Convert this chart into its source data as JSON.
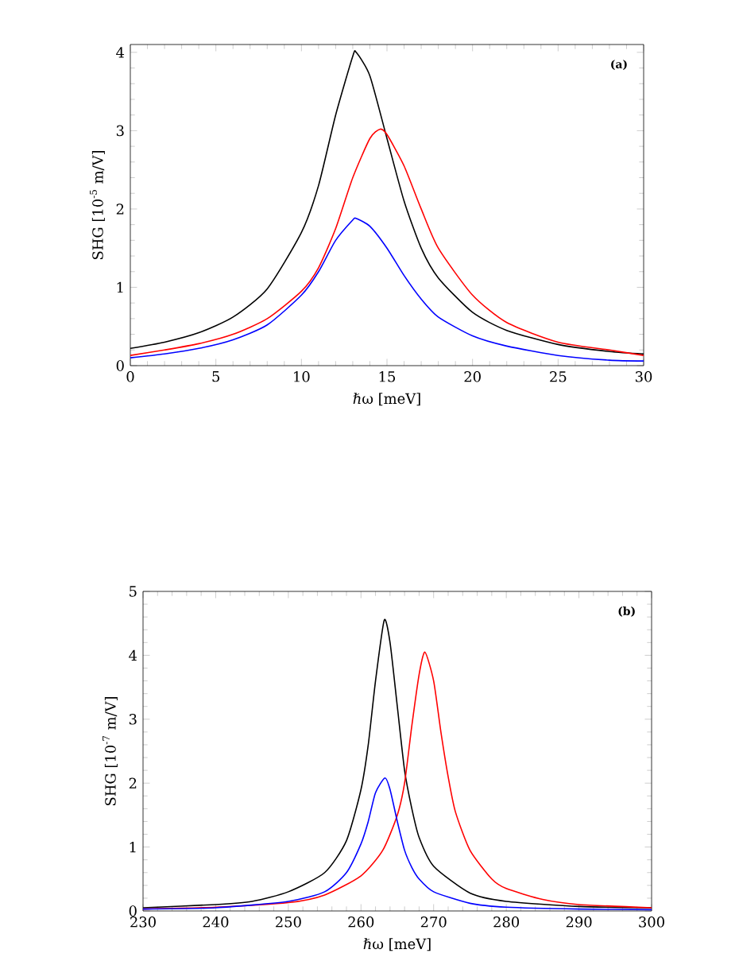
{
  "chart_data": [
    {
      "type": "line",
      "xlabel": "ℏω [meV]",
      "ylabel": "SHG [10$^{-5}$ m/V]",
      "annotations": [
        "(a)"
      ],
      "xlim": [
        0,
        30
      ],
      "ylim": [
        0,
        4.1
      ],
      "xticks": [
        0,
        5,
        10,
        15,
        20,
        25,
        30
      ],
      "yticks": [
        0,
        1,
        2,
        3,
        4
      ],
      "series": [
        {
          "color": "#000000",
          "x": [
            0,
            2,
            4,
            6,
            8,
            10,
            11,
            12,
            13,
            13.2,
            14,
            15,
            16,
            17,
            18,
            20,
            22,
            25,
            28,
            30
          ],
          "values": [
            0.22,
            0.3,
            0.42,
            0.62,
            0.98,
            1.7,
            2.3,
            3.2,
            3.95,
            4.0,
            3.7,
            2.9,
            2.1,
            1.5,
            1.12,
            0.68,
            0.45,
            0.27,
            0.18,
            0.15
          ]
        },
        {
          "color": "#ff0000",
          "x": [
            0,
            2,
            4,
            6,
            8,
            10,
            11,
            12,
            13,
            14,
            14.6,
            15,
            16,
            17,
            18,
            20,
            22,
            25,
            28,
            30
          ],
          "values": [
            0.13,
            0.2,
            0.28,
            0.4,
            0.6,
            0.95,
            1.25,
            1.75,
            2.4,
            2.9,
            3.02,
            2.95,
            2.55,
            2.0,
            1.5,
            0.9,
            0.55,
            0.3,
            0.2,
            0.13
          ]
        },
        {
          "color": "#0000ff",
          "x": [
            0,
            2,
            4,
            6,
            8,
            10,
            11,
            12,
            13,
            13.2,
            14,
            15,
            16,
            17,
            18,
            20,
            22,
            25,
            28,
            30
          ],
          "values": [
            0.1,
            0.15,
            0.22,
            0.33,
            0.52,
            0.9,
            1.2,
            1.6,
            1.86,
            1.88,
            1.78,
            1.5,
            1.15,
            0.85,
            0.62,
            0.38,
            0.25,
            0.13,
            0.07,
            0.06
          ]
        }
      ]
    },
    {
      "type": "line",
      "xlabel": "ℏω [meV]",
      "ylabel": "SHG [10$^{-7}$ m/V]",
      "annotations": [
        "(b)"
      ],
      "xlim": [
        230,
        300
      ],
      "ylim": [
        0,
        5
      ],
      "xticks": [
        230,
        240,
        250,
        260,
        270,
        280,
        290,
        300
      ],
      "yticks": [
        0,
        1,
        2,
        3,
        4,
        5
      ],
      "series": [
        {
          "color": "#000000",
          "x": [
            230,
            240,
            245,
            250,
            255,
            258,
            260,
            261,
            262,
            263.2,
            264,
            265,
            266,
            267,
            268,
            270,
            275,
            280,
            290,
            300
          ],
          "values": [
            0.05,
            0.1,
            0.15,
            0.3,
            0.6,
            1.1,
            1.9,
            2.6,
            3.6,
            4.55,
            4.2,
            3.2,
            2.2,
            1.6,
            1.15,
            0.7,
            0.28,
            0.15,
            0.07,
            0.05
          ]
        },
        {
          "color": "#ff0000",
          "x": [
            230,
            240,
            250,
            255,
            260,
            263,
            265,
            266,
            267,
            268,
            268.8,
            270,
            271,
            272,
            273,
            275,
            278,
            280,
            285,
            290,
            300
          ],
          "values": [
            0.03,
            0.06,
            0.13,
            0.25,
            0.55,
            0.95,
            1.5,
            2.0,
            2.9,
            3.7,
            4.05,
            3.6,
            2.8,
            2.1,
            1.55,
            0.95,
            0.5,
            0.35,
            0.18,
            0.1,
            0.05
          ]
        },
        {
          "color": "#0000ff",
          "x": [
            230,
            240,
            250,
            255,
            258,
            260,
            261,
            262,
            263.3,
            264,
            265,
            266,
            267,
            268,
            270,
            275,
            280,
            290,
            300
          ],
          "values": [
            0.03,
            0.05,
            0.15,
            0.3,
            0.6,
            1.05,
            1.4,
            1.85,
            2.08,
            1.9,
            1.4,
            0.95,
            0.68,
            0.5,
            0.3,
            0.12,
            0.06,
            0.03,
            0.02
          ]
        }
      ]
    }
  ]
}
